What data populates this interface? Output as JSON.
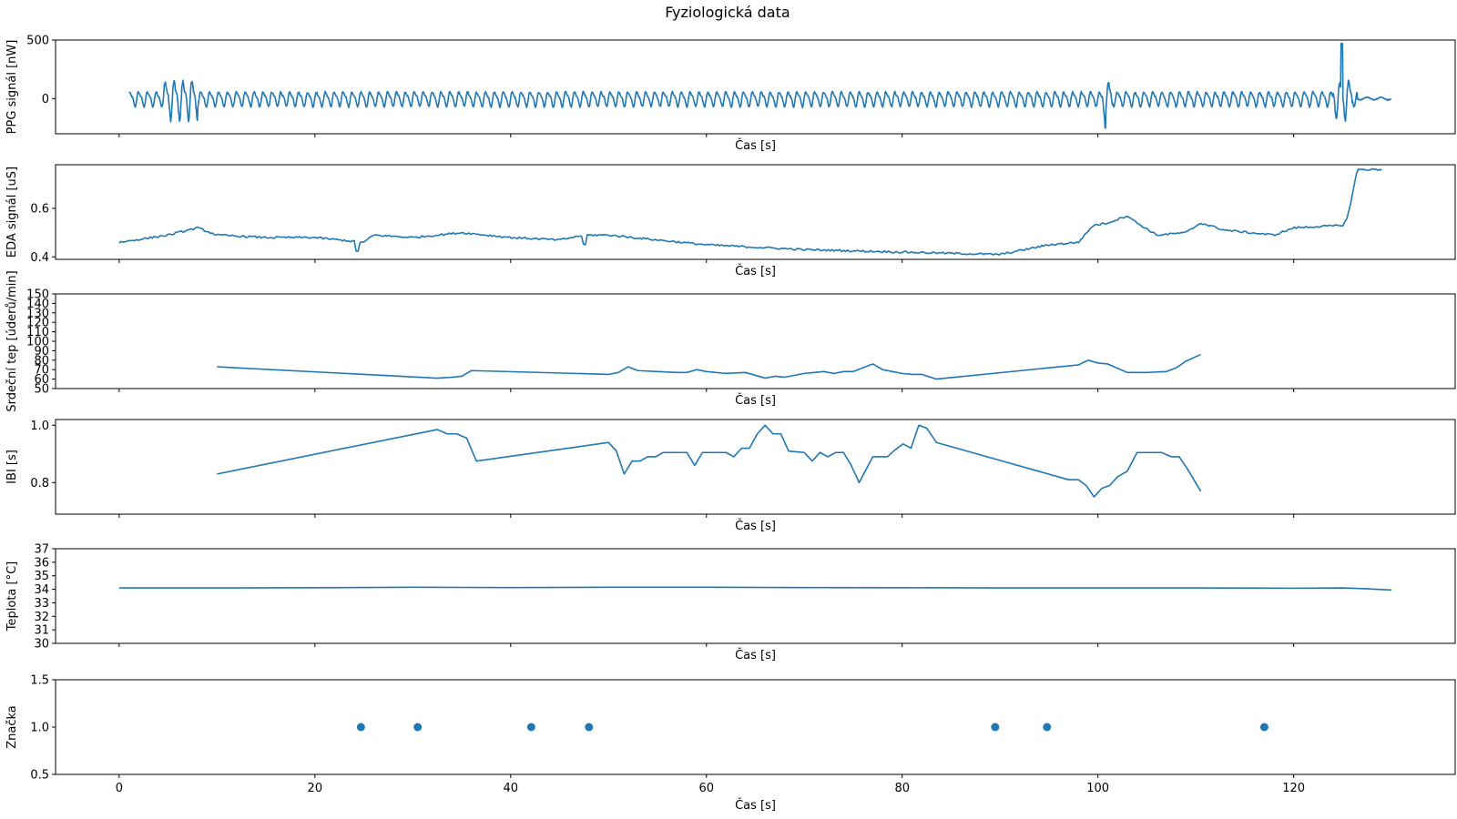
{
  "figure": {
    "title": "Fyziologická data",
    "line_color": "#1f77b4"
  },
  "chart_data": [
    {
      "type": "line",
      "xlabel": "Čas [s]",
      "ylabel": "PPG signál [nW]",
      "xlim": [
        -6.5,
        136.5
      ],
      "ylim": [
        -300,
        500
      ],
      "xticks": [
        0,
        20,
        40,
        60,
        80,
        100,
        120
      ],
      "show_xtick_labels": false,
      "yticks": [
        0,
        500
      ],
      "series": [
        {
          "x": [],
          "y": []
        }
      ]
    },
    {
      "type": "line",
      "xlabel": "Čas [s]",
      "ylabel": "EDA signál [uS]",
      "xlim": [
        -6.5,
        136.5
      ],
      "ylim": [
        0.39,
        0.78
      ],
      "xticks": [
        0,
        20,
        40,
        60,
        80,
        100,
        120
      ],
      "show_xtick_labels": false,
      "yticks": [
        0.4,
        0.6
      ],
      "series": [
        {
          "x": [],
          "y": []
        }
      ]
    },
    {
      "type": "line",
      "xlabel": "Čas [s]",
      "ylabel": "Srdeční tep [úderů/min]",
      "xlim": [
        -6.5,
        136.5
      ],
      "ylim": [
        50,
        150
      ],
      "xticks": [
        0,
        20,
        40,
        60,
        80,
        100,
        120
      ],
      "show_xtick_labels": false,
      "yticks": [
        50,
        60,
        70,
        80,
        90,
        100,
        110,
        120,
        130,
        140,
        150
      ],
      "series": [
        {
          "x": [
            10,
            32.5,
            34,
            35,
            36,
            50,
            51,
            52,
            53,
            55,
            57,
            58,
            59,
            60,
            62,
            64,
            65,
            66,
            67,
            68,
            70,
            72,
            73,
            74,
            75,
            76,
            77,
            78,
            79,
            80,
            81,
            82,
            83.5,
            97,
            98,
            99,
            100,
            101,
            103,
            105,
            107,
            108,
            109,
            110.5
          ],
          "y": [
            73,
            61,
            62,
            63,
            69,
            65,
            67,
            73,
            69,
            68,
            67,
            67,
            70,
            68,
            66,
            67,
            64,
            61,
            63,
            62,
            66,
            68,
            66,
            68,
            68,
            72,
            76,
            70,
            68,
            66,
            65,
            65,
            60,
            74,
            75,
            80,
            77,
            76,
            67,
            67,
            68,
            72,
            79,
            86
          ]
        }
      ]
    },
    {
      "type": "line",
      "xlabel": "Čas [s]",
      "ylabel": "IBI [s]",
      "xlim": [
        -6.5,
        136.5
      ],
      "ylim": [
        0.69,
        1.02
      ],
      "xticks": [
        0,
        20,
        40,
        60,
        80,
        100,
        120
      ],
      "show_xtick_labels": false,
      "yticks": [
        0.8,
        1.0
      ],
      "series": [
        {
          "x": [
            10,
            32.5,
            33.5,
            34.5,
            35.5,
            36.5,
            50,
            50.8,
            51.6,
            52.4,
            53.2,
            54,
            54.8,
            55.6,
            56.4,
            57.2,
            58,
            58.8,
            59.6,
            62,
            62.8,
            63.6,
            64.4,
            65.2,
            66,
            66.8,
            67.6,
            68.4,
            70,
            70.8,
            71.6,
            72.4,
            73.2,
            74,
            74.8,
            75.6,
            77,
            78.5,
            79.3,
            80.1,
            80.9,
            81.7,
            82.5,
            83.5,
            97,
            98,
            98.8,
            99.6,
            100.4,
            101.2,
            102,
            103,
            104,
            105,
            106.5,
            107.5,
            108.3,
            109.1,
            110.5
          ],
          "y": [
            0.83,
            0.985,
            0.97,
            0.97,
            0.955,
            0.875,
            0.94,
            0.91,
            0.83,
            0.875,
            0.875,
            0.89,
            0.89,
            0.905,
            0.905,
            0.905,
            0.905,
            0.86,
            0.905,
            0.905,
            0.89,
            0.92,
            0.92,
            0.97,
            1.0,
            0.97,
            0.97,
            0.91,
            0.905,
            0.875,
            0.905,
            0.89,
            0.905,
            0.905,
            0.86,
            0.8,
            0.89,
            0.89,
            0.915,
            0.935,
            0.92,
            1.0,
            0.99,
            0.94,
            0.81,
            0.81,
            0.79,
            0.75,
            0.78,
            0.79,
            0.82,
            0.84,
            0.905,
            0.905,
            0.905,
            0.89,
            0.89,
            0.85,
            0.77
          ]
        }
      ]
    },
    {
      "type": "line",
      "xlabel": "Čas [s]",
      "ylabel": "Teplota [°C]",
      "xlim": [
        -6.5,
        136.5
      ],
      "ylim": [
        30,
        37
      ],
      "xticks": [
        0,
        20,
        40,
        60,
        80,
        100,
        120
      ],
      "show_xtick_labels": false,
      "yticks": [
        30,
        31,
        32,
        33,
        34,
        35,
        36,
        37
      ],
      "series": [
        {
          "x": [
            0,
            10,
            20,
            30,
            40,
            50,
            60,
            70,
            80,
            90,
            100,
            110,
            120,
            125,
            127,
            130
          ],
          "y": [
            34.1,
            34.1,
            34.12,
            34.15,
            34.13,
            34.15,
            34.15,
            34.13,
            34.12,
            34.1,
            34.1,
            34.1,
            34.08,
            34.1,
            34.05,
            33.95
          ]
        }
      ]
    },
    {
      "type": "scatter",
      "xlabel": "Čas [s]",
      "ylabel": "Značka",
      "xlim": [
        -6.5,
        136.5
      ],
      "ylim": [
        0.5,
        1.5
      ],
      "xticks": [
        0,
        20,
        40,
        60,
        80,
        100,
        120
      ],
      "show_xtick_labels": true,
      "yticks": [
        0.5,
        1.0,
        1.5
      ],
      "series": [
        {
          "x": [
            24.7,
            30.5,
            42.1,
            48,
            89.5,
            94.8,
            117
          ],
          "y": [
            1,
            1,
            1,
            1,
            1,
            1,
            1
          ]
        }
      ]
    }
  ]
}
